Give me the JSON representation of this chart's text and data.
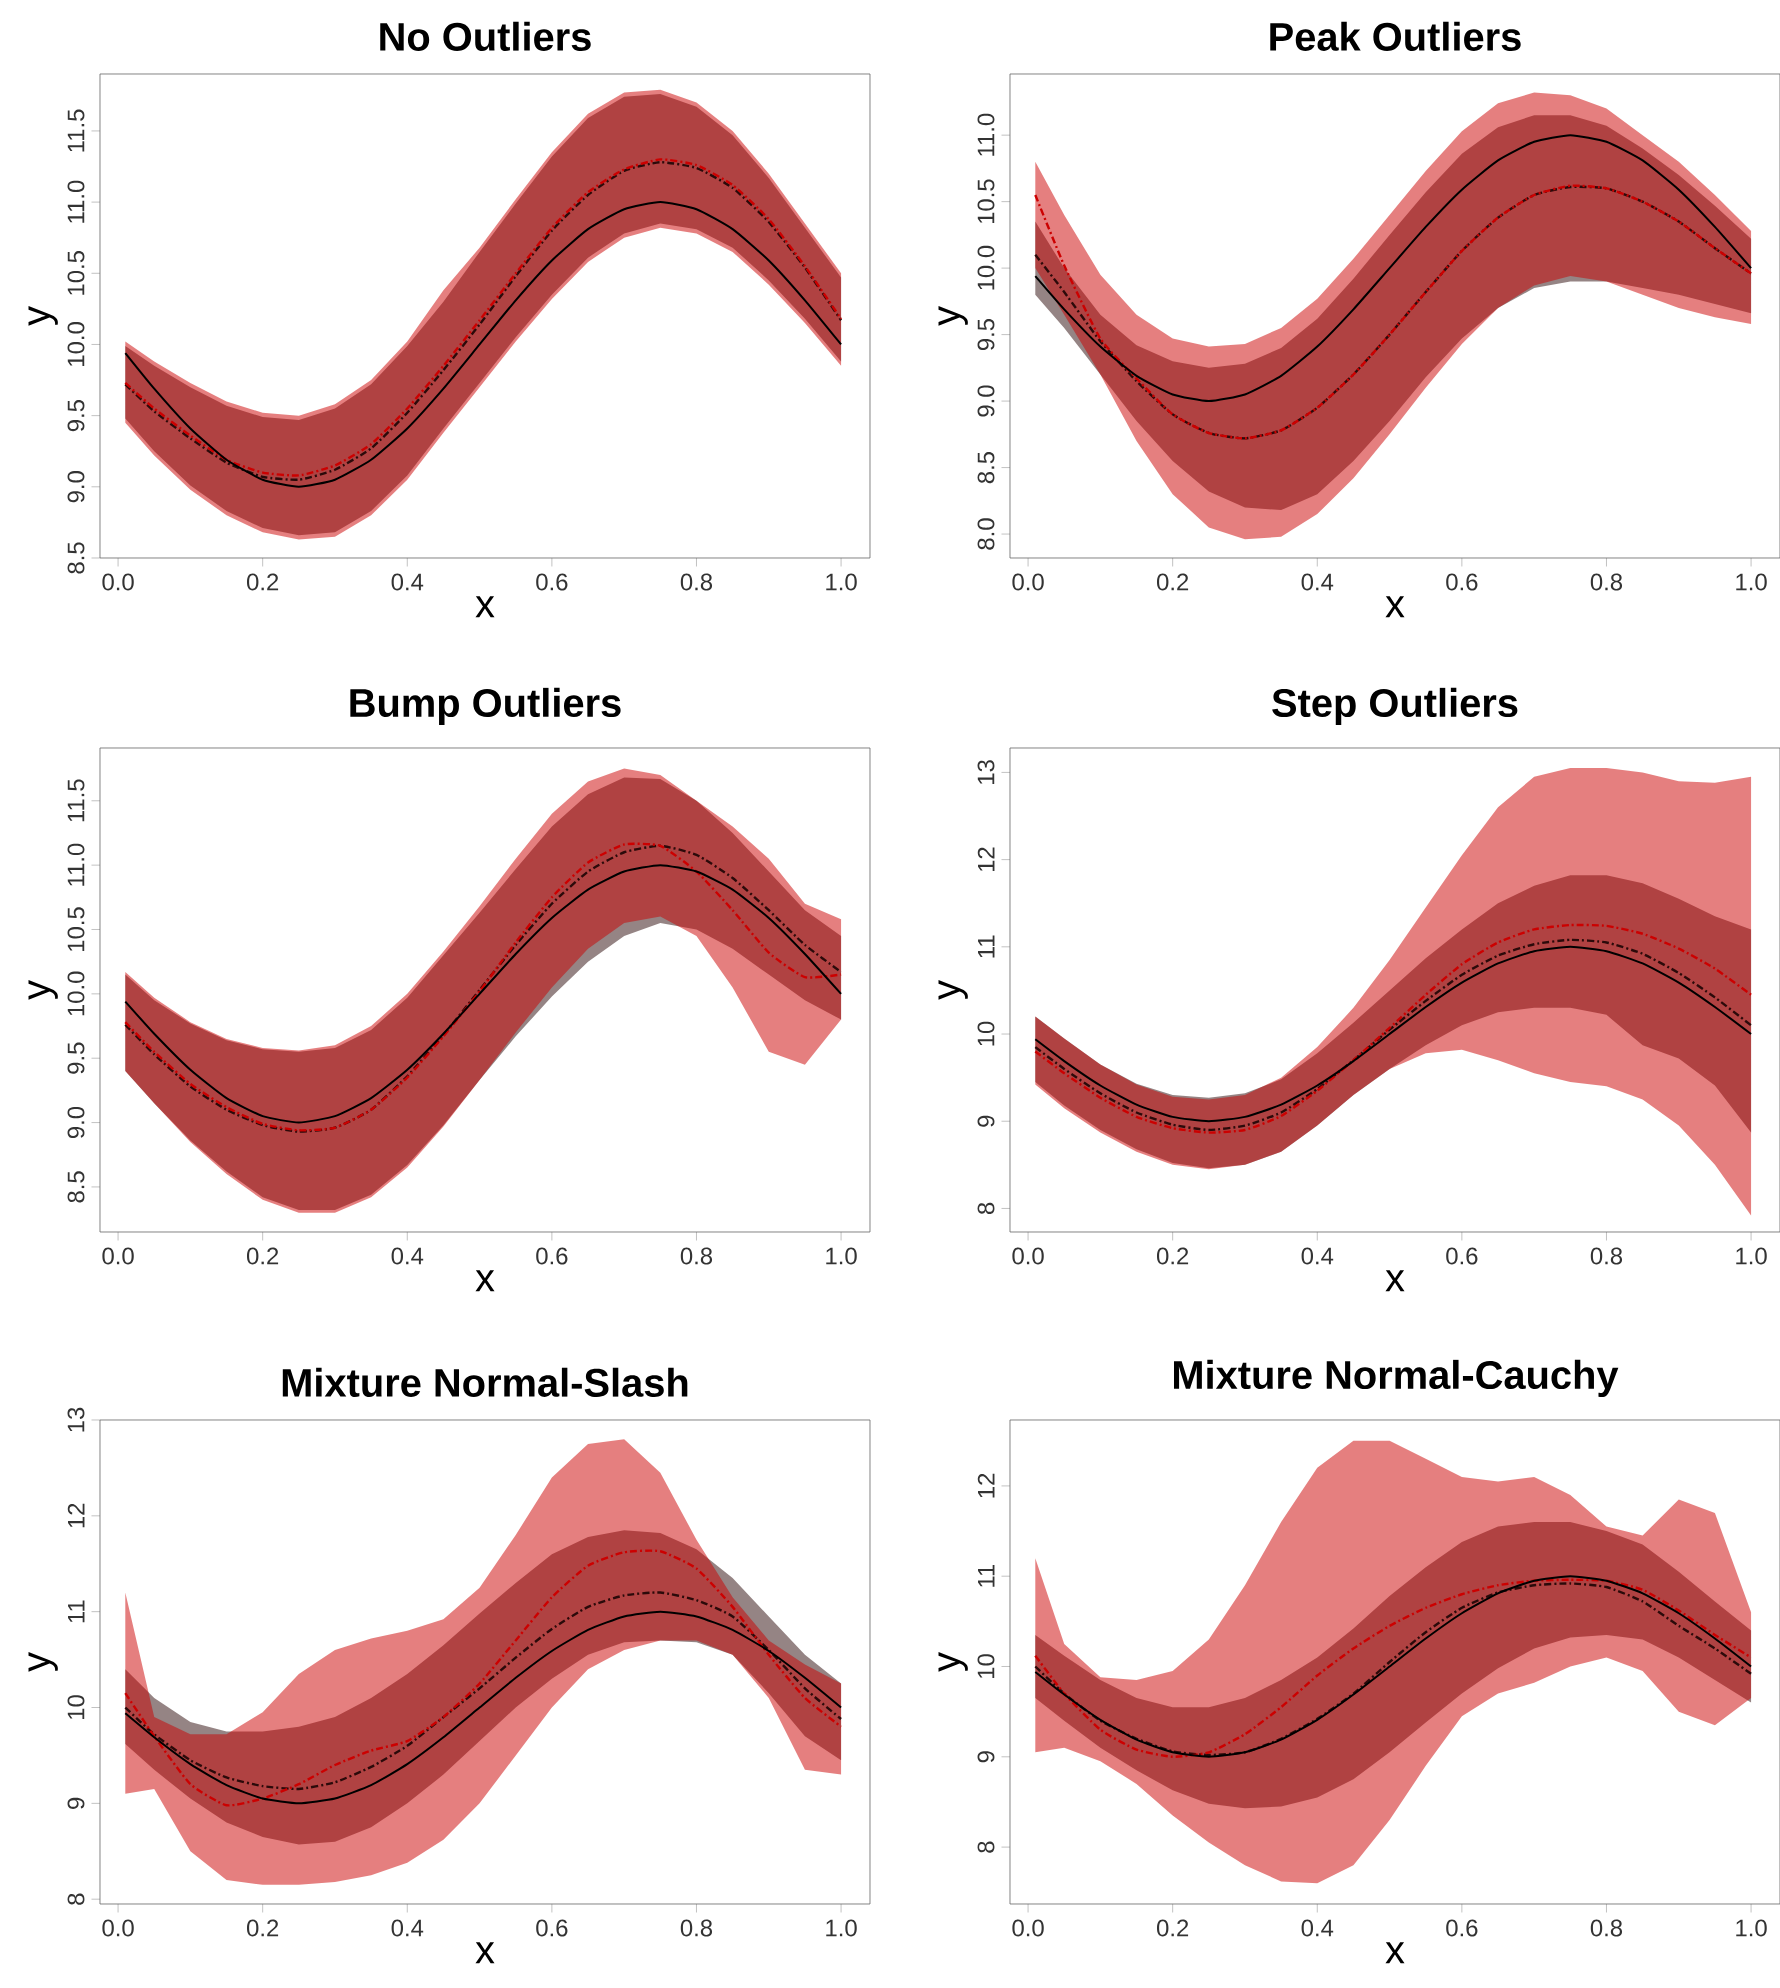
{
  "chart_data": [
    {
      "type": "line",
      "title": "No Outliers",
      "xlabel": "x",
      "ylabel": "y",
      "x": [
        0.01,
        0.05,
        0.1,
        0.15,
        0.2,
        0.25,
        0.3,
        0.35,
        0.4,
        0.45,
        0.5,
        0.55,
        0.6,
        0.65,
        0.7,
        0.75,
        0.8,
        0.85,
        0.9,
        0.95,
        1.0
      ],
      "xlim": [
        -0.025,
        1.04
      ],
      "ylim": [
        8.5,
        11.9
      ],
      "xticks": [
        {
          "value": 0,
          "label": "0.0"
        },
        {
          "value": 0.2,
          "label": "0.2"
        },
        {
          "value": 0.4,
          "label": "0.4"
        },
        {
          "value": 0.6,
          "label": "0.6"
        },
        {
          "value": 0.8,
          "label": "0.8"
        },
        {
          "value": 1,
          "label": "1.0"
        }
      ],
      "yticks": [
        8.5,
        {
          "value": 9,
          "label": "9.0"
        },
        9.5,
        {
          "value": 10,
          "label": "10.0"
        },
        10.5,
        {
          "value": 11,
          "label": "11.0"
        },
        11.5
      ],
      "series": [
        {
          "color": "#2b0a0a",
          "line_style": "dashed",
          "values": [
            9.72,
            9.53,
            9.34,
            9.17,
            9.07,
            9.05,
            9.12,
            9.27,
            9.52,
            9.82,
            10.14,
            10.48,
            10.8,
            11.05,
            11.22,
            11.28,
            11.24,
            11.1,
            10.86,
            10.54,
            10.17
          ],
          "upper": [
            9.99,
            9.85,
            9.7,
            9.57,
            9.49,
            9.47,
            9.55,
            9.72,
            9.99,
            10.3,
            10.65,
            10.99,
            11.32,
            11.59,
            11.74,
            11.76,
            11.67,
            11.47,
            11.17,
            10.82,
            10.47
          ],
          "lower": [
            9.48,
            9.25,
            9.01,
            8.83,
            8.71,
            8.66,
            8.68,
            8.83,
            9.08,
            9.41,
            9.73,
            10.05,
            10.35,
            10.61,
            10.78,
            10.85,
            10.81,
            10.68,
            10.45,
            10.18,
            9.88
          ]
        },
        {
          "color": "#cc0000",
          "line_style": "dashed",
          "values": [
            9.73,
            9.55,
            9.36,
            9.19,
            9.1,
            9.08,
            9.15,
            9.3,
            9.55,
            9.85,
            10.17,
            10.5,
            10.82,
            11.07,
            11.23,
            11.3,
            11.26,
            11.12,
            10.88,
            10.55,
            10.18
          ],
          "upper": [
            10.02,
            9.88,
            9.73,
            9.6,
            9.52,
            9.5,
            9.58,
            9.75,
            10.02,
            10.38,
            10.68,
            11.02,
            11.35,
            11.62,
            11.77,
            11.79,
            11.7,
            11.5,
            11.2,
            10.85,
            10.5
          ],
          "lower": [
            9.45,
            9.22,
            8.98,
            8.8,
            8.68,
            8.63,
            8.65,
            8.8,
            9.05,
            9.38,
            9.7,
            10.02,
            10.32,
            10.58,
            10.75,
            10.82,
            10.78,
            10.65,
            10.42,
            10.15,
            9.85
          ]
        },
        {
          "color": "#000000",
          "line_style": "solid",
          "values": [
            9.94,
            9.69,
            9.41,
            9.19,
            9.05,
            9.0,
            9.05,
            9.19,
            9.41,
            9.69,
            10.0,
            10.31,
            10.59,
            10.81,
            10.95,
            11.0,
            10.95,
            10.81,
            10.59,
            10.31,
            10.0
          ]
        }
      ]
    },
    {
      "type": "line",
      "title": "Peak Outliers",
      "xlabel": "x",
      "ylabel": "y",
      "x": [
        0.01,
        0.05,
        0.1,
        0.15,
        0.2,
        0.25,
        0.3,
        0.35,
        0.4,
        0.45,
        0.5,
        0.55,
        0.6,
        0.65,
        0.7,
        0.75,
        0.8,
        0.85,
        0.9,
        0.95,
        1.0
      ],
      "xlim": [
        -0.025,
        1.04
      ],
      "ylim": [
        7.82,
        11.46
      ],
      "xticks": [
        {
          "value": 0,
          "label": "0.0"
        },
        {
          "value": 0.2,
          "label": "0.2"
        },
        {
          "value": 0.4,
          "label": "0.4"
        },
        {
          "value": 0.6,
          "label": "0.6"
        },
        {
          "value": 0.8,
          "label": "0.8"
        },
        {
          "value": 1,
          "label": "1.0"
        }
      ],
      "yticks": [
        {
          "value": 8,
          "label": "8.0"
        },
        8.5,
        {
          "value": 9,
          "label": "9.0"
        },
        9.5,
        {
          "value": 10,
          "label": "10.0"
        },
        10.5,
        {
          "value": 11,
          "label": "11.0"
        }
      ],
      "series": [
        {
          "color": "#2b0a0a",
          "line_style": "dashed",
          "values": [
            10.1,
            9.82,
            9.45,
            9.15,
            8.9,
            8.76,
            8.72,
            8.78,
            8.95,
            9.2,
            9.5,
            9.82,
            10.13,
            10.38,
            10.55,
            10.61,
            10.6,
            10.5,
            10.35,
            10.15,
            9.96
          ],
          "upper": [
            10.35,
            10.0,
            9.65,
            9.42,
            9.3,
            9.25,
            9.28,
            9.4,
            9.62,
            9.92,
            10.25,
            10.57,
            10.86,
            11.06,
            11.15,
            11.15,
            11.07,
            10.9,
            10.7,
            10.47,
            10.22
          ],
          "lower": [
            9.8,
            9.55,
            9.2,
            8.85,
            8.55,
            8.32,
            8.2,
            8.18,
            8.3,
            8.55,
            8.85,
            9.18,
            9.47,
            9.7,
            9.85,
            9.9,
            9.9,
            9.85,
            9.8,
            9.73,
            9.66
          ]
        },
        {
          "color": "#cc0000",
          "line_style": "dashed",
          "values": [
            10.55,
            10.02,
            9.47,
            9.17,
            8.9,
            8.76,
            8.72,
            8.78,
            8.95,
            9.2,
            9.5,
            9.82,
            10.13,
            10.38,
            10.55,
            10.62,
            10.6,
            10.5,
            10.35,
            10.15,
            9.96
          ],
          "upper": [
            10.8,
            10.4,
            9.95,
            9.65,
            9.47,
            9.41,
            9.43,
            9.55,
            9.77,
            10.07,
            10.4,
            10.73,
            11.03,
            11.24,
            11.32,
            11.3,
            11.2,
            11.0,
            10.8,
            10.55,
            10.28
          ],
          "lower": [
            10.0,
            9.65,
            9.2,
            8.7,
            8.3,
            8.05,
            7.96,
            7.98,
            8.15,
            8.42,
            8.75,
            9.1,
            9.43,
            9.7,
            9.87,
            9.94,
            9.9,
            9.8,
            9.7,
            9.63,
            9.58
          ]
        },
        {
          "color": "#000000",
          "line_style": "solid",
          "values": [
            9.94,
            9.69,
            9.41,
            9.19,
            9.05,
            9.0,
            9.05,
            9.19,
            9.41,
            9.69,
            10.0,
            10.31,
            10.59,
            10.81,
            10.95,
            11.0,
            10.95,
            10.81,
            10.59,
            10.31,
            10.0
          ]
        }
      ]
    },
    {
      "type": "line",
      "title": "Bump Outliers",
      "xlabel": "x",
      "ylabel": "y",
      "x": [
        0.01,
        0.05,
        0.1,
        0.15,
        0.2,
        0.25,
        0.3,
        0.35,
        0.4,
        0.45,
        0.5,
        0.55,
        0.6,
        0.65,
        0.7,
        0.75,
        0.8,
        0.85,
        0.9,
        0.95,
        1.0
      ],
      "xlim": [
        -0.025,
        1.04
      ],
      "ylim": [
        8.15,
        11.91
      ],
      "xticks": [
        {
          "value": 0,
          "label": "0.0"
        },
        {
          "value": 0.2,
          "label": "0.2"
        },
        {
          "value": 0.4,
          "label": "0.4"
        },
        {
          "value": 0.6,
          "label": "0.6"
        },
        {
          "value": 0.8,
          "label": "0.8"
        },
        {
          "value": 1,
          "label": "1.0"
        }
      ],
      "yticks": [
        8.5,
        {
          "value": 9,
          "label": "9.0"
        },
        9.5,
        {
          "value": 10,
          "label": "10.0"
        },
        10.5,
        {
          "value": 11,
          "label": "11.0"
        },
        11.5
      ],
      "series": [
        {
          "color": "#2b0a0a",
          "line_style": "dashed",
          "values": [
            9.76,
            9.53,
            9.28,
            9.1,
            8.98,
            8.93,
            8.96,
            9.1,
            9.36,
            9.68,
            10.03,
            10.38,
            10.7,
            10.95,
            11.1,
            11.15,
            11.08,
            10.9,
            10.65,
            10.38,
            10.17
          ],
          "upper": [
            10.15,
            9.95,
            9.77,
            9.64,
            9.57,
            9.55,
            9.58,
            9.72,
            9.97,
            10.3,
            10.63,
            10.97,
            11.3,
            11.55,
            11.68,
            11.67,
            11.5,
            11.25,
            10.95,
            10.65,
            10.45
          ],
          "lower": [
            9.4,
            9.15,
            8.86,
            8.62,
            8.42,
            8.32,
            8.32,
            8.44,
            8.67,
            8.98,
            9.33,
            9.67,
            9.98,
            10.25,
            10.45,
            10.55,
            10.5,
            10.35,
            10.15,
            9.95,
            9.8
          ]
        },
        {
          "color": "#cc0000",
          "line_style": "dashed",
          "values": [
            9.78,
            9.55,
            9.3,
            9.12,
            8.99,
            8.94,
            8.96,
            9.1,
            9.35,
            9.67,
            10.02,
            10.4,
            10.75,
            11.02,
            11.16,
            11.15,
            10.95,
            10.65,
            10.32,
            10.13,
            10.15
          ],
          "upper": [
            10.17,
            9.97,
            9.78,
            9.65,
            9.58,
            9.56,
            9.6,
            9.75,
            10.0,
            10.33,
            10.68,
            11.05,
            11.4,
            11.65,
            11.75,
            11.7,
            11.5,
            11.3,
            11.05,
            10.7,
            10.58
          ],
          "lower": [
            9.4,
            9.15,
            8.85,
            8.6,
            8.4,
            8.3,
            8.3,
            8.42,
            8.65,
            8.97,
            9.33,
            9.7,
            10.05,
            10.35,
            10.55,
            10.6,
            10.45,
            10.05,
            9.55,
            9.45,
            9.8
          ]
        },
        {
          "color": "#000000",
          "line_style": "solid",
          "values": [
            9.94,
            9.69,
            9.41,
            9.19,
            9.05,
            9.0,
            9.05,
            9.19,
            9.41,
            9.69,
            10.0,
            10.31,
            10.59,
            10.81,
            10.95,
            11.0,
            10.95,
            10.81,
            10.59,
            10.31,
            10.0
          ]
        }
      ]
    },
    {
      "type": "line",
      "title": "Step Outliers",
      "xlabel": "x",
      "ylabel": "y",
      "x": [
        0.01,
        0.05,
        0.1,
        0.15,
        0.2,
        0.25,
        0.3,
        0.35,
        0.4,
        0.45,
        0.5,
        0.55,
        0.6,
        0.65,
        0.7,
        0.75,
        0.8,
        0.85,
        0.9,
        0.95,
        1.0
      ],
      "xlim": [
        -0.025,
        1.04
      ],
      "ylim": [
        7.73,
        13.28
      ],
      "xticks": [
        {
          "value": 0,
          "label": "0.0"
        },
        {
          "value": 0.2,
          "label": "0.2"
        },
        {
          "value": 0.4,
          "label": "0.4"
        },
        {
          "value": 0.6,
          "label": "0.6"
        },
        {
          "value": 0.8,
          "label": "0.8"
        },
        {
          "value": 1,
          "label": "1.0"
        }
      ],
      "yticks": [
        8,
        9,
        10,
        11,
        12,
        13
      ],
      "series": [
        {
          "color": "#2b0a0a",
          "line_style": "dashed",
          "values": [
            9.85,
            9.6,
            9.32,
            9.1,
            8.96,
            8.9,
            8.95,
            9.1,
            9.37,
            9.7,
            10.05,
            10.38,
            10.68,
            10.9,
            11.03,
            11.08,
            11.05,
            10.92,
            10.7,
            10.42,
            10.1
          ],
          "upper": [
            10.2,
            9.95,
            9.65,
            9.43,
            9.3,
            9.27,
            9.32,
            9.48,
            9.78,
            10.13,
            10.5,
            10.87,
            11.2,
            11.5,
            11.7,
            11.82,
            11.82,
            11.73,
            11.55,
            11.35,
            11.2
          ],
          "lower": [
            9.45,
            9.18,
            8.9,
            8.68,
            8.52,
            8.46,
            8.5,
            8.65,
            8.95,
            9.3,
            9.6,
            9.87,
            10.1,
            10.25,
            10.3,
            10.3,
            10.22,
            9.87,
            9.72,
            9.41,
            8.87
          ]
        },
        {
          "color": "#cc0000",
          "line_style": "dashed",
          "values": [
            9.8,
            9.55,
            9.27,
            9.05,
            8.92,
            8.87,
            8.9,
            9.06,
            9.35,
            9.7,
            10.07,
            10.45,
            10.8,
            11.05,
            11.2,
            11.25,
            11.24,
            11.15,
            10.98,
            10.75,
            10.45
          ],
          "upper": [
            10.2,
            9.95,
            9.65,
            9.42,
            9.28,
            9.25,
            9.3,
            9.5,
            9.85,
            10.3,
            10.85,
            11.45,
            12.05,
            12.6,
            12.95,
            13.05,
            13.05,
            13.0,
            12.9,
            12.88,
            12.95
          ],
          "lower": [
            9.42,
            9.15,
            8.87,
            8.65,
            8.5,
            8.45,
            8.5,
            8.65,
            8.95,
            9.3,
            9.6,
            9.78,
            9.82,
            9.7,
            9.55,
            9.45,
            9.4,
            9.25,
            8.95,
            8.5,
            7.92
          ]
        },
        {
          "color": "#000000",
          "line_style": "solid",
          "values": [
            9.94,
            9.69,
            9.41,
            9.19,
            9.05,
            9.0,
            9.05,
            9.19,
            9.41,
            9.69,
            10.0,
            10.31,
            10.59,
            10.81,
            10.95,
            11.0,
            10.95,
            10.81,
            10.59,
            10.31,
            10.0
          ]
        }
      ]
    },
    {
      "type": "line",
      "title": "Mixture Normal-Slash",
      "xlabel": "x",
      "ylabel": "y",
      "x": [
        0.01,
        0.05,
        0.1,
        0.15,
        0.2,
        0.25,
        0.3,
        0.35,
        0.4,
        0.45,
        0.5,
        0.55,
        0.6,
        0.65,
        0.7,
        0.75,
        0.8,
        0.85,
        0.9,
        0.95,
        1.0
      ],
      "xlim": [
        -0.025,
        1.04
      ],
      "ylim": [
        7.95,
        13.0
      ],
      "xticks": [
        {
          "value": 0,
          "label": "0.0"
        },
        {
          "value": 0.2,
          "label": "0.2"
        },
        {
          "value": 0.4,
          "label": "0.4"
        },
        {
          "value": 0.6,
          "label": "0.6"
        },
        {
          "value": 0.8,
          "label": "0.8"
        },
        {
          "value": 1,
          "label": "1.0"
        }
      ],
      "yticks": [
        8,
        9,
        10,
        11,
        12,
        13
      ],
      "series": [
        {
          "color": "#2b0a0a",
          "line_style": "dashed",
          "values": [
            10.0,
            9.72,
            9.45,
            9.27,
            9.18,
            9.15,
            9.22,
            9.38,
            9.6,
            9.9,
            10.2,
            10.52,
            10.82,
            11.05,
            11.17,
            11.2,
            11.12,
            10.95,
            10.6,
            10.2,
            9.88
          ],
          "upper": [
            10.4,
            10.1,
            9.85,
            9.75,
            9.75,
            9.8,
            9.9,
            10.1,
            10.35,
            10.65,
            10.98,
            11.3,
            11.6,
            11.78,
            11.85,
            11.82,
            11.65,
            11.35,
            10.95,
            10.55,
            10.25
          ],
          "lower": [
            9.62,
            9.35,
            9.05,
            8.8,
            8.65,
            8.57,
            8.6,
            8.75,
            9.0,
            9.3,
            9.65,
            10.0,
            10.3,
            10.55,
            10.68,
            10.7,
            10.68,
            10.55,
            10.15,
            9.7,
            9.45
          ]
        },
        {
          "color": "#cc0000",
          "line_style": "dashed",
          "values": [
            10.15,
            9.7,
            9.2,
            8.98,
            9.05,
            9.2,
            9.4,
            9.55,
            9.65,
            9.9,
            10.25,
            10.7,
            11.15,
            11.48,
            11.62,
            11.63,
            11.45,
            11.05,
            10.55,
            10.1,
            9.8
          ],
          "upper": [
            11.2,
            9.9,
            9.72,
            9.72,
            9.95,
            10.35,
            10.6,
            10.72,
            10.8,
            10.92,
            11.25,
            11.8,
            12.4,
            12.75,
            12.8,
            12.45,
            11.75,
            11.15,
            10.7,
            10.45,
            10.25
          ],
          "lower": [
            9.1,
            9.15,
            8.5,
            8.2,
            8.15,
            8.15,
            8.18,
            8.25,
            8.38,
            8.62,
            9.0,
            9.5,
            10.0,
            10.4,
            10.6,
            10.7,
            10.7,
            10.55,
            10.1,
            9.35,
            9.3
          ]
        },
        {
          "color": "#000000",
          "line_style": "solid",
          "values": [
            9.94,
            9.69,
            9.41,
            9.19,
            9.05,
            9.0,
            9.05,
            9.19,
            9.41,
            9.69,
            10.0,
            10.31,
            10.59,
            10.81,
            10.95,
            11.0,
            10.95,
            10.81,
            10.59,
            10.31,
            10.0
          ]
        }
      ]
    },
    {
      "type": "line",
      "title": "Mixture Normal-Cauchy",
      "xlabel": "x",
      "ylabel": "y",
      "x": [
        0.01,
        0.05,
        0.1,
        0.15,
        0.2,
        0.25,
        0.3,
        0.35,
        0.4,
        0.45,
        0.5,
        0.55,
        0.6,
        0.65,
        0.7,
        0.75,
        0.8,
        0.85,
        0.9,
        0.95,
        1.0
      ],
      "xlim": [
        -0.025,
        1.04
      ],
      "ylim": [
        7.37,
        12.73
      ],
      "xticks": [
        {
          "value": 0,
          "label": "0.0"
        },
        {
          "value": 0.2,
          "label": "0.2"
        },
        {
          "value": 0.4,
          "label": "0.4"
        },
        {
          "value": 0.6,
          "label": "0.6"
        },
        {
          "value": 0.8,
          "label": "0.8"
        },
        {
          "value": 1,
          "label": "1.0"
        }
      ],
      "yticks": [
        8,
        9,
        10,
        11,
        12
      ],
      "series": [
        {
          "color": "#2b0a0a",
          "line_style": "dashed",
          "values": [
            10.0,
            9.7,
            9.4,
            9.2,
            9.06,
            9.02,
            9.05,
            9.2,
            9.42,
            9.7,
            10.05,
            10.38,
            10.65,
            10.82,
            10.9,
            10.92,
            10.88,
            10.72,
            10.45,
            10.2,
            9.92
          ],
          "upper": [
            10.35,
            10.12,
            9.85,
            9.65,
            9.55,
            9.55,
            9.65,
            9.85,
            10.1,
            10.42,
            10.78,
            11.1,
            11.38,
            11.55,
            11.6,
            11.6,
            11.5,
            11.35,
            11.05,
            10.72,
            10.4
          ],
          "lower": [
            9.65,
            9.4,
            9.1,
            8.85,
            8.63,
            8.48,
            8.43,
            8.45,
            8.55,
            8.75,
            9.05,
            9.38,
            9.7,
            9.98,
            10.2,
            10.32,
            10.35,
            10.3,
            10.1,
            9.85,
            9.6
          ]
        },
        {
          "color": "#cc0000",
          "line_style": "dashed",
          "values": [
            10.12,
            9.7,
            9.3,
            9.08,
            9.0,
            9.05,
            9.25,
            9.55,
            9.9,
            10.2,
            10.45,
            10.65,
            10.8,
            10.9,
            10.95,
            10.96,
            10.95,
            10.85,
            10.62,
            10.35,
            10.1
          ],
          "upper": [
            11.2,
            10.25,
            9.88,
            9.85,
            9.95,
            10.3,
            10.9,
            11.6,
            12.2,
            12.5,
            12.5,
            12.3,
            12.1,
            12.05,
            12.1,
            11.9,
            11.55,
            11.45,
            11.85,
            11.7,
            10.6
          ],
          "lower": [
            9.05,
            9.1,
            8.95,
            8.7,
            8.35,
            8.05,
            7.8,
            7.62,
            7.6,
            7.8,
            8.3,
            8.9,
            9.45,
            9.7,
            9.82,
            10.0,
            10.1,
            9.95,
            9.5,
            9.35,
            9.65
          ]
        },
        {
          "color": "#000000",
          "line_style": "solid",
          "values": [
            9.94,
            9.69,
            9.41,
            9.19,
            9.05,
            9.0,
            9.05,
            9.19,
            9.41,
            9.69,
            10.0,
            10.31,
            10.59,
            10.81,
            10.95,
            11.0,
            10.95,
            10.81,
            10.59,
            10.31,
            10.0
          ]
        }
      ]
    }
  ]
}
